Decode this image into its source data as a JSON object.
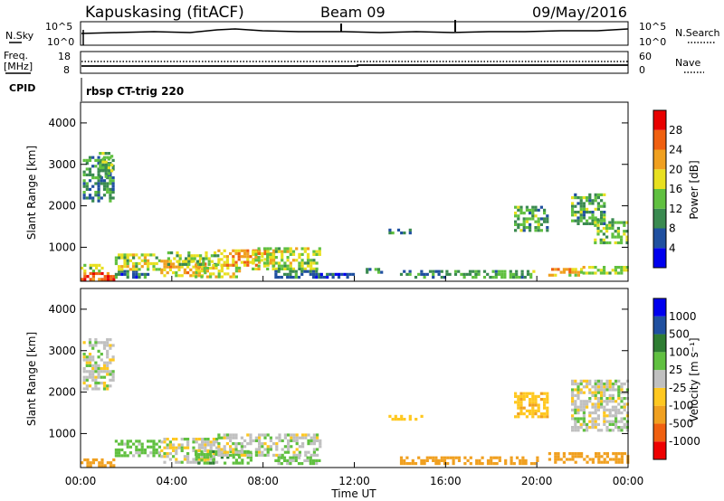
{
  "header": {
    "title": "Kapuskasing (fitACF)",
    "beam": "Beam 09",
    "date": "09/May/2016"
  },
  "strip": {
    "nsky_label": "N.Sky",
    "nsky_ticks": [
      "10^5",
      "10^0"
    ],
    "nsearch_label": "N.Search",
    "nsearch_ticks": [
      "10^5",
      "10^0"
    ],
    "freq_label": "Freq.",
    "freq_unit": "[MHz]",
    "freq_ticks": [
      "18",
      "8"
    ],
    "nave_label": "Nave",
    "nave_ticks": [
      "60",
      "0"
    ],
    "cpid_label": "CPID",
    "cpid_value": "rbsp CT-trig 220"
  },
  "xaxis": {
    "label": "Time UT",
    "ticks": [
      "00:00",
      "04:00",
      "08:00",
      "12:00",
      "16:00",
      "20:00",
      "00:00"
    ],
    "range_hours": [
      0,
      24
    ]
  },
  "colors": {
    "power": [
      "#0000ee",
      "#2050a0",
      "#3a8a50",
      "#60c040",
      "#e8e020",
      "#f0a020",
      "#f06010",
      "#e80000"
    ],
    "velocity": [
      "#ee0000",
      "#f06010",
      "#f0a020",
      "#ffc820",
      "#c0c0c0",
      "#60c040",
      "#2e7d32",
      "#2050a0",
      "#0000ee"
    ]
  },
  "chart_data": [
    {
      "type": "heatmap",
      "title": "",
      "xlabel": "Time UT",
      "ylabel": "Slant Range [km]",
      "yticks": [
        "1000",
        "2000",
        "3000",
        "4000"
      ],
      "ylim": [
        180,
        4500
      ],
      "xlim_hours": [
        0,
        24
      ],
      "colorbar": {
        "label": "Power [dB]",
        "ticks": [
          "4",
          "8",
          "12",
          "16",
          "20",
          "24",
          "28"
        ],
        "range": [
          0,
          32
        ]
      },
      "regions": [
        {
          "t0": 0.0,
          "t1": 1.5,
          "r0": 200,
          "r1": 400,
          "value": 26
        },
        {
          "t0": 0.0,
          "t1": 1.0,
          "r0": 400,
          "r1": 600,
          "value": 14
        },
        {
          "t0": 0.1,
          "t1": 1.4,
          "r0": 2100,
          "r1": 3200,
          "value": 10
        },
        {
          "t0": 0.8,
          "t1": 1.4,
          "r0": 2700,
          "r1": 3300,
          "value": 13
        },
        {
          "t0": 1.5,
          "t1": 3.0,
          "r0": 300,
          "r1": 450,
          "value": 8
        },
        {
          "t0": 1.5,
          "t1": 3.5,
          "r0": 500,
          "r1": 850,
          "value": 16
        },
        {
          "t0": 3.5,
          "t1": 5.5,
          "r0": 300,
          "r1": 700,
          "value": 20
        },
        {
          "t0": 3.8,
          "t1": 6.0,
          "r0": 600,
          "r1": 900,
          "value": 14
        },
        {
          "t0": 5.0,
          "t1": 7.0,
          "r0": 300,
          "r1": 600,
          "value": 18
        },
        {
          "t0": 6.0,
          "t1": 8.5,
          "r0": 600,
          "r1": 950,
          "value": 22
        },
        {
          "t0": 7.5,
          "t1": 10.5,
          "r0": 500,
          "r1": 1000,
          "value": 16
        },
        {
          "t0": 8.5,
          "t1": 10.5,
          "r0": 300,
          "r1": 450,
          "value": 8
        },
        {
          "t0": 10.5,
          "t1": 12.0,
          "r0": 250,
          "r1": 380,
          "value": 6
        },
        {
          "t0": 12.5,
          "t1": 13.2,
          "r0": 400,
          "r1": 500,
          "value": 12
        },
        {
          "t0": 13.5,
          "t1": 14.5,
          "r0": 1350,
          "r1": 1450,
          "value": 8
        },
        {
          "t0": 14.0,
          "t1": 16.0,
          "r0": 300,
          "r1": 450,
          "value": 10
        },
        {
          "t0": 16.0,
          "t1": 20.0,
          "r0": 300,
          "r1": 450,
          "value": 12
        },
        {
          "t0": 19.0,
          "t1": 20.5,
          "r0": 1400,
          "r1": 2000,
          "value": 12
        },
        {
          "t0": 20.5,
          "t1": 22.0,
          "r0": 300,
          "r1": 500,
          "value": 20
        },
        {
          "t0": 21.5,
          "t1": 23.0,
          "r0": 1600,
          "r1": 2300,
          "value": 12
        },
        {
          "t0": 22.5,
          "t1": 24.0,
          "r0": 1100,
          "r1": 1700,
          "value": 14
        },
        {
          "t0": 22.0,
          "t1": 24.0,
          "r0": 350,
          "r1": 550,
          "value": 16
        }
      ]
    },
    {
      "type": "heatmap",
      "title": "",
      "xlabel": "Time UT",
      "ylabel": "Slant Range [km]",
      "yticks": [
        "1000",
        "2000",
        "3000",
        "4000"
      ],
      "ylim": [
        180,
        4500
      ],
      "xlim_hours": [
        0,
        24
      ],
      "colorbar": {
        "label": "Velocity [m s⁻¹]",
        "ticks": [
          "-1000",
          "-500",
          "-100",
          "-25",
          "25",
          "100",
          "500",
          "1000"
        ]
      },
      "regions": [
        {
          "t0": 0.0,
          "t1": 1.5,
          "r0": 200,
          "r1": 400,
          "value": -400
        },
        {
          "t0": 0.1,
          "t1": 1.4,
          "r0": 2100,
          "r1": 3300,
          "value": 0
        },
        {
          "t0": 1.5,
          "t1": 3.5,
          "r0": 450,
          "r1": 850,
          "value": 60
        },
        {
          "t0": 3.5,
          "t1": 6.0,
          "r0": 300,
          "r1": 900,
          "value": 0
        },
        {
          "t0": 5.0,
          "t1": 7.5,
          "r0": 300,
          "r1": 600,
          "value": 70
        },
        {
          "t0": 6.0,
          "t1": 10.5,
          "r0": 500,
          "r1": 1000,
          "value": 0
        },
        {
          "t0": 8.5,
          "t1": 10.5,
          "r0": 300,
          "r1": 450,
          "value": 40
        },
        {
          "t0": 13.5,
          "t1": 15.0,
          "r0": 1350,
          "r1": 1450,
          "value": -60
        },
        {
          "t0": 14.0,
          "t1": 20.0,
          "r0": 300,
          "r1": 450,
          "value": -200
        },
        {
          "t0": 19.0,
          "t1": 20.5,
          "r0": 1400,
          "r1": 2000,
          "value": -80
        },
        {
          "t0": 20.5,
          "t1": 24.0,
          "r0": 300,
          "r1": 550,
          "value": -400
        },
        {
          "t0": 21.5,
          "t1": 24.0,
          "r0": 1100,
          "r1": 2300,
          "value": 0
        }
      ]
    }
  ]
}
